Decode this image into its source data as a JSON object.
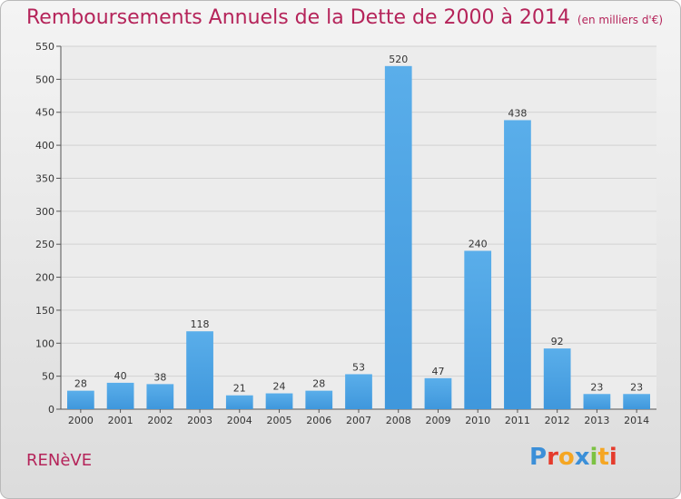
{
  "header": {
    "title": "Remboursements Annuels de la Dette de 2000 à 2014",
    "unit": "(en milliers d'€)"
  },
  "footer": {
    "commune": "RENèVE",
    "brand_letters": [
      "P",
      "r",
      "o",
      "x",
      "i",
      "t",
      "i"
    ],
    "brand_colors": [
      "#3b8fd8",
      "#e53b2c",
      "#f5a623",
      "#3b8fd8",
      "#7cc243",
      "#f5a623",
      "#e53b2c"
    ]
  },
  "colors": {
    "bar": "#3f97dc",
    "bar_light": "#5aaeea",
    "title": "#b5245a"
  },
  "chart_data": {
    "type": "bar",
    "title": "Remboursements Annuels de la Dette de 2000 à 2014",
    "xlabel": "",
    "ylabel": "",
    "categories": [
      "2000",
      "2001",
      "2002",
      "2003",
      "2004",
      "2005",
      "2006",
      "2007",
      "2008",
      "2009",
      "2010",
      "2011",
      "2012",
      "2013",
      "2014"
    ],
    "values": [
      28,
      40,
      38,
      118,
      21,
      24,
      28,
      53,
      520,
      47,
      240,
      438,
      92,
      23,
      23
    ],
    "ylim": [
      0,
      550
    ],
    "yticks": [
      0,
      50,
      100,
      150,
      200,
      250,
      300,
      350,
      400,
      450,
      500,
      550
    ],
    "grid": true
  }
}
